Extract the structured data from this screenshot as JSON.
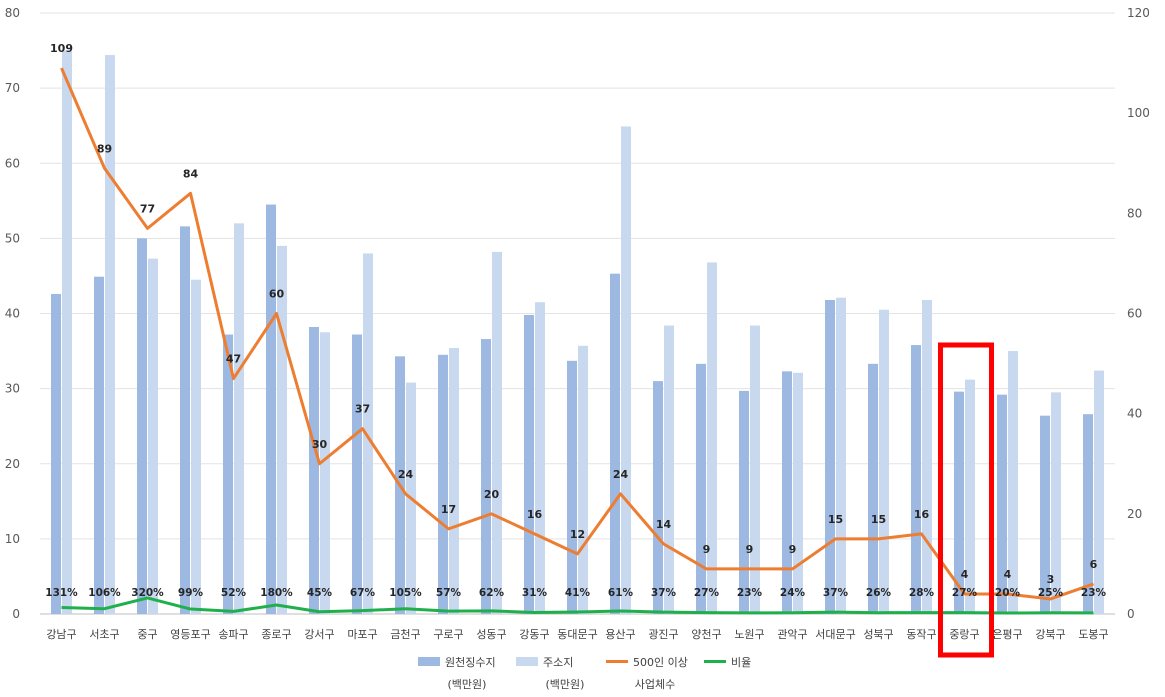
{
  "chart_data": {
    "type": "bar",
    "categories": [
      "강남구",
      "서초구",
      "중구",
      "영등포구",
      "송파구",
      "종로구",
      "강서구",
      "마포구",
      "금천구",
      "구로구",
      "성동구",
      "강동구",
      "동대문구",
      "용산구",
      "광진구",
      "양천구",
      "노원구",
      "관악구",
      "서대문구",
      "성북구",
      "동작구",
      "중랑구",
      "은평구",
      "강북구",
      "도봉구"
    ],
    "series": [
      {
        "name": "원천징수지",
        "axis": "left",
        "kind": "bar",
        "color": "#9DB9E2",
        "values": [
          42.6,
          44.9,
          50.0,
          51.6,
          37.2,
          54.5,
          38.2,
          37.2,
          34.3,
          34.5,
          36.6,
          39.8,
          33.7,
          45.3,
          31.0,
          33.3,
          29.7,
          32.3,
          41.8,
          33.3,
          35.8,
          29.6,
          29.2,
          26.4,
          26.6
        ]
      },
      {
        "name": "주소지",
        "axis": "left",
        "kind": "bar",
        "color": "#C7D8EF",
        "values": [
          75.0,
          74.4,
          47.3,
          44.5,
          52.0,
          49.0,
          37.5,
          48.0,
          30.8,
          35.4,
          48.2,
          41.5,
          35.7,
          64.9,
          38.4,
          46.8,
          38.4,
          32.1,
          42.1,
          40.5,
          41.8,
          31.2,
          35.0,
          29.5,
          32.4
        ]
      },
      {
        "name": "500인 이상",
        "axis": "right",
        "kind": "line",
        "color": "#ED7D31",
        "values": [
          109,
          89,
          77,
          84,
          47,
          60,
          30,
          37,
          24,
          17,
          20,
          16,
          12,
          24,
          14,
          9,
          9,
          9,
          15,
          15,
          16,
          4,
          4,
          3,
          6
        ]
      },
      {
        "name": "비율",
        "axis": "right",
        "kind": "line",
        "color": "#1FB04C",
        "values": [
          1.31,
          1.06,
          3.2,
          0.99,
          0.52,
          1.8,
          0.45,
          0.67,
          1.05,
          0.57,
          0.62,
          0.31,
          0.41,
          0.61,
          0.37,
          0.27,
          0.23,
          0.24,
          0.37,
          0.26,
          0.28,
          0.27,
          0.2,
          0.25,
          0.23
        ],
        "labels": [
          "131%",
          "106%",
          "320%",
          "99%",
          "52%",
          "180%",
          "45%",
          "67%",
          "105%",
          "57%",
          "62%",
          "31%",
          "41%",
          "61%",
          "37%",
          "27%",
          "23%",
          "24%",
          "37%",
          "26%",
          "28%",
          "27%",
          "20%",
          "25%",
          "23%"
        ]
      }
    ],
    "left_axis": {
      "min": 0,
      "max": 80,
      "ticks": [
        "0",
        "10",
        "20",
        "30",
        "40",
        "50",
        "60",
        "70",
        "80"
      ]
    },
    "right_axis": {
      "min": 0,
      "max": 120,
      "ticks": [
        "0",
        "20",
        "40",
        "60",
        "80",
        "100",
        "120"
      ]
    },
    "legend": {
      "placement": "bottom",
      "items": [
        {
          "label": "원천징수지",
          "sub": "(백만원)",
          "kind": "bar",
          "color": "#9DB9E2"
        },
        {
          "label": "주소지",
          "sub": "(백만원)",
          "kind": "bar",
          "color": "#C7D8EF"
        },
        {
          "label": "500인 이상",
          "sub": "사업체수",
          "kind": "line",
          "color": "#ED7D31"
        },
        {
          "label": "비율",
          "sub": "",
          "kind": "line",
          "color": "#1FB04C"
        }
      ]
    },
    "highlight": {
      "category": "중랑구",
      "color": "#FF0000"
    },
    "grid": true
  }
}
